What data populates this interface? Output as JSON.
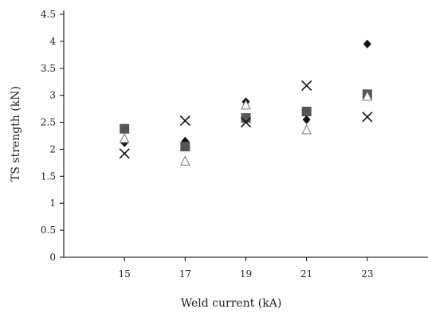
{
  "chart_data": {
    "type": "scatter",
    "xlabel": "Weld current (kA)",
    "ylabel": "TS strength (kN)",
    "xlim": [
      13,
      25
    ],
    "ylim": [
      0,
      4.5
    ],
    "x_ticks": [
      15,
      17,
      19,
      21,
      23
    ],
    "y_ticks": [
      0,
      0.5,
      1,
      1.5,
      2,
      2.5,
      3,
      3.5,
      4,
      4.5
    ],
    "x_tick_labels": [
      "15",
      "17",
      "19",
      "21",
      "23"
    ],
    "y_tick_labels": [
      "0",
      "0.5",
      "1",
      "1.5",
      "2",
      "2.5",
      "3",
      "3.5",
      "4",
      "4.5"
    ],
    "grid": false,
    "legend": false,
    "series": [
      {
        "marker": "diamond",
        "color": "#111111",
        "x": [
          15,
          17,
          19,
          21,
          23
        ],
        "y": [
          2.12,
          2.15,
          2.88,
          2.55,
          3.95
        ]
      },
      {
        "marker": "square",
        "color": "#555555",
        "x": [
          15,
          17,
          19,
          21,
          23
        ],
        "y": [
          2.38,
          2.05,
          2.58,
          2.7,
          3.02
        ]
      },
      {
        "marker": "triangle-open",
        "color": "#777777",
        "x": [
          15,
          17,
          19,
          21,
          23
        ],
        "y": [
          2.2,
          1.78,
          2.82,
          2.36,
          2.98
        ]
      },
      {
        "marker": "x",
        "color": "#111111",
        "x": [
          15,
          17,
          19,
          21,
          23
        ],
        "y": [
          1.92,
          2.53,
          2.5,
          3.18,
          2.6
        ]
      }
    ]
  }
}
